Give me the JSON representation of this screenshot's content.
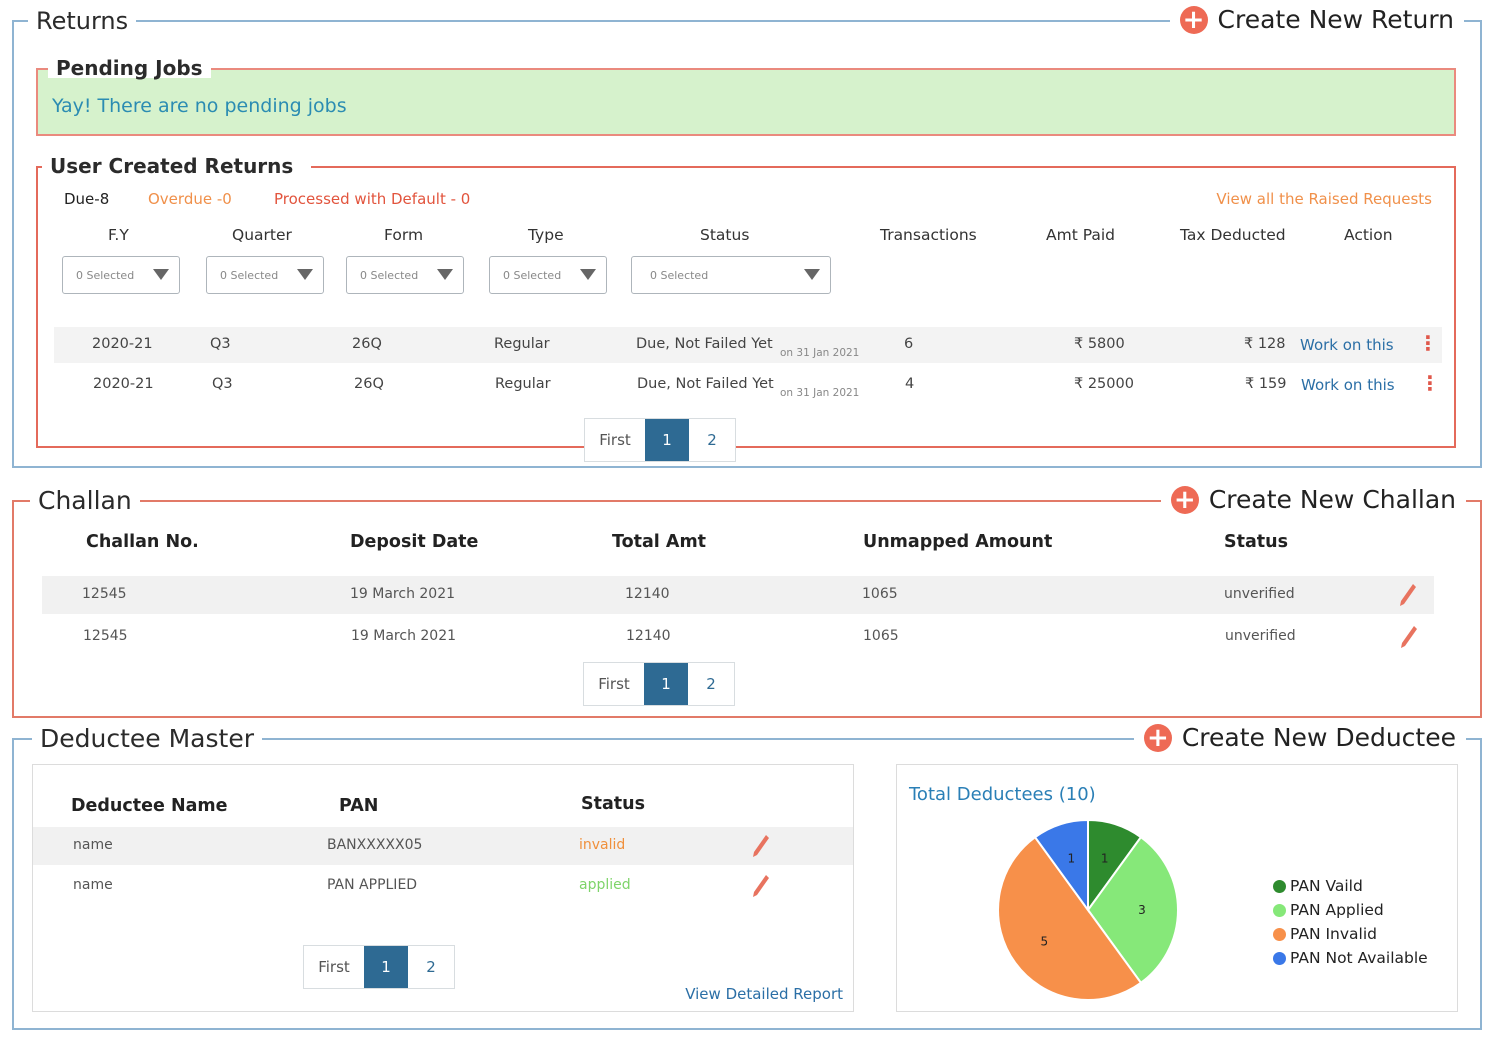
{
  "returns": {
    "title": "Returns",
    "create_label": "Create New Return",
    "pending": {
      "title": "Pending Jobs",
      "message": "Yay! There are no pending jobs"
    },
    "user_created": {
      "title": "User Created Returns",
      "due": "Due-8",
      "overdue": "Overdue -0",
      "processed": "Processed with Default - 0",
      "raised_link": "View all the Raised Requests",
      "columns": [
        "F.Y",
        "Quarter",
        "Form",
        "Type",
        "Status",
        "Transactions",
        "Amt Paid",
        "Tax Deducted",
        "Action"
      ],
      "filter_placeholder": "0 Selected",
      "rows": [
        {
          "fy": "2020-21",
          "quarter": "Q3",
          "form": "26Q",
          "type": "Regular",
          "status": "Due, Not Failed Yet",
          "status_sub": "on 31 Jan 2021",
          "transactions": "6",
          "amt_paid": "₹ 5800",
          "tax_deducted": "₹ 128",
          "action": "Work on this"
        },
        {
          "fy": "2020-21",
          "quarter": "Q3",
          "form": "26Q",
          "type": "Regular",
          "status": "Due, Not Failed Yet",
          "status_sub": "on 31 Jan 2021",
          "transactions": "4",
          "amt_paid": "₹ 25000",
          "tax_deducted": "₹ 159",
          "action": "Work on this"
        }
      ]
    }
  },
  "pagination": {
    "first": "First",
    "page1": "1",
    "page2": "2"
  },
  "challan": {
    "title": "Challan",
    "create_label": "Create New Challan",
    "columns": [
      "Challan No.",
      "Deposit Date",
      "Total Amt",
      "Unmapped Amount",
      "Status"
    ],
    "rows": [
      {
        "no": "12545",
        "date": "19 March 2021",
        "total": "12140",
        "unmapped": "1065",
        "status": "unverified"
      },
      {
        "no": "12545",
        "date": "19 March 2021",
        "total": "12140",
        "unmapped": "1065",
        "status": "unverified"
      }
    ]
  },
  "deductee": {
    "title": "Deductee Master",
    "create_label": "Create New Deductee",
    "columns": [
      "Deductee Name",
      "PAN",
      "Status"
    ],
    "rows": [
      {
        "name": "name",
        "pan": "BANXXXXX05",
        "status": "invalid",
        "status_color": "#f0903c"
      },
      {
        "name": "name",
        "pan": "PAN APPLIED",
        "status": "applied",
        "status_color": "#7ed46a"
      }
    ],
    "report_link": "View Detailed Report"
  },
  "chart_data": {
    "type": "pie",
    "title": "Total Deductees (10)",
    "legend_position": "right",
    "slices": [
      {
        "label": "PAN Vaild",
        "value": 1,
        "color": "#2e8b2e"
      },
      {
        "label": "PAN Applied",
        "value": 3,
        "color": "#86e879"
      },
      {
        "label": "PAN Invalid",
        "value": 5,
        "color": "#f7904a"
      },
      {
        "label": "PAN Not Available",
        "value": 1,
        "color": "#3a78e8"
      }
    ]
  },
  "icons": {
    "plus": "plus-circle-icon",
    "edit": "pencil-icon",
    "more": "kebab-menu-icon",
    "dropdown": "caret-down-icon"
  }
}
